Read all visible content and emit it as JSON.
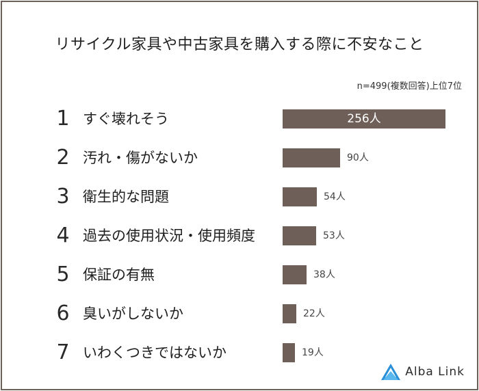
{
  "title": "リサイクル家具や中古家具を購入する際に不安なこと",
  "note": "n=499(複数回答)上位7位",
  "brand": {
    "text": "Alba Link",
    "icon": "alba-link-logo-icon",
    "color": "#2a8fd6"
  },
  "colors": {
    "bar": "#6e5f58",
    "frame": "#6e5f58"
  },
  "chart_data": {
    "type": "bar",
    "orientation": "horizontal",
    "title": "リサイクル家具や中古家具を購入する際に不安なこと",
    "xlabel": "",
    "ylabel": "",
    "xlim": [
      0,
      256
    ],
    "grid": false,
    "categories": [
      "すぐ壊れそう",
      "汚れ・傷がないか",
      "衛生的な問題",
      "過去の使用状況・使用頻度",
      "保証の有無",
      "臭いがしないか",
      "いわくつきではないか"
    ],
    "ranks": [
      "1",
      "2",
      "3",
      "4",
      "5",
      "6",
      "7"
    ],
    "values": [
      256,
      90,
      54,
      53,
      38,
      22,
      19
    ],
    "value_labels": [
      "256人",
      "90人",
      "54人",
      "53人",
      "38人",
      "22人",
      "19人"
    ]
  }
}
